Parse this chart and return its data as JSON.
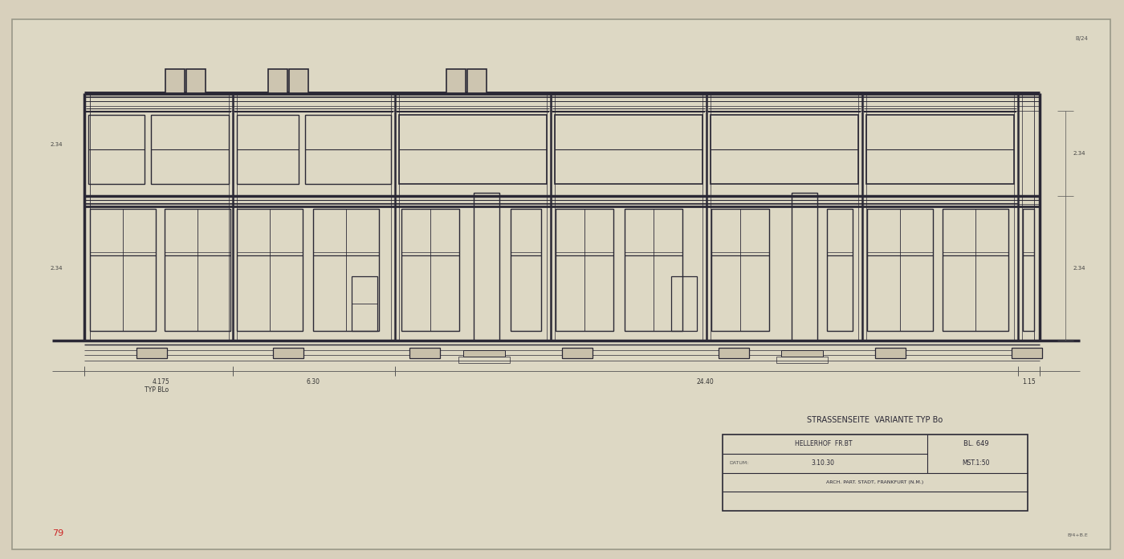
{
  "bg_color": "#d8d0bc",
  "paper_color": "#ddd8c4",
  "line_color": "#2a2835",
  "figsize": [
    14.0,
    6.96
  ],
  "dpi": 100,
  "title_block_text": "STRASSENSEITE  VARIANTE TYP Bo",
  "hellerhof": "HELLERHOF  FR.BT",
  "datum": "3.10.30",
  "blatt": "BL. 649",
  "mst": "MST.1:50",
  "arch": "ARCH. PART. STADT, FRANKFURT (N.M.)",
  "dim_labels": [
    "4.175",
    "6.30",
    "24.40",
    "1.15"
  ],
  "typ_label": "TYP BLo"
}
